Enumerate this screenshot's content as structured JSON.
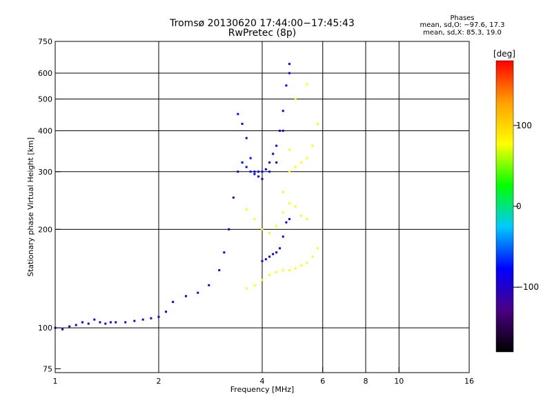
{
  "title": {
    "line1": "Tromsø 20130620 17:44:00−17:45:43",
    "line2": "RwPretec (8p)"
  },
  "stats": {
    "heading": "Phases",
    "o_mode": "mean, sd,O: −97.6, 17.3",
    "x_mode": "mean, sd,X:  85.3, 19.0"
  },
  "colorbar": {
    "unit_label": "[deg]",
    "ticks": [
      "100",
      "0",
      "−100"
    ],
    "tick_values": [
      100,
      0,
      -100
    ],
    "range": [
      -180,
      180
    ],
    "colors": [
      "#000000",
      "#4b0082",
      "#0000ff",
      "#00c8ff",
      "#00ff00",
      "#ffff00",
      "#ffa000",
      "#ff0000"
    ]
  },
  "chart_data": {
    "type": "scatter",
    "xlabel": "Frequency [MHz]",
    "ylabel": "Stationary phase Virtual Height [km]",
    "x_scale": "log",
    "y_scale": "log",
    "xlim": [
      1,
      16
    ],
    "ylim": [
      73,
      750
    ],
    "x_ticks": [
      1,
      2,
      4,
      6,
      8,
      10,
      16
    ],
    "y_ticks": [
      75,
      100,
      200,
      300,
      400,
      500,
      600,
      750
    ],
    "x_gridlines": [
      2,
      4,
      6,
      8,
      10
    ],
    "y_gridlines": [
      100,
      200,
      300,
      400,
      500,
      600
    ],
    "grid": true,
    "color_by": "phase [deg]",
    "series": [
      {
        "mode": "O",
        "phase_mean": -97.6,
        "phase_sd": 17.3,
        "x": [
          1.0,
          1.05,
          1.1,
          1.15,
          1.2,
          1.25,
          1.3,
          1.35,
          1.4,
          1.45,
          1.5,
          1.6,
          1.7,
          1.8,
          1.9,
          2.0,
          2.1,
          2.2,
          2.4,
          2.6,
          2.8,
          3.0,
          3.1,
          3.2,
          3.3,
          3.4,
          3.5,
          3.6,
          3.7,
          3.8,
          3.9,
          4.0,
          4.1,
          4.2,
          4.3,
          4.4,
          4.5,
          4.6,
          4.7,
          4.8,
          3.4,
          3.5,
          3.6,
          3.7,
          3.8,
          3.9,
          4.0,
          4.2,
          4.4,
          4.6,
          4.8,
          4.0,
          4.1,
          4.2,
          4.3,
          4.4,
          4.5,
          4.6,
          4.7,
          4.8
        ],
        "y": [
          100,
          99,
          101,
          102,
          104,
          103,
          106,
          104,
          103,
          104,
          104,
          104,
          105,
          106,
          107,
          108,
          112,
          120,
          125,
          128,
          135,
          150,
          170,
          200,
          250,
          300,
          320,
          310,
          300,
          295,
          300,
          300,
          305,
          320,
          340,
          360,
          400,
          460,
          550,
          640,
          450,
          420,
          380,
          330,
          300,
          290,
          285,
          300,
          320,
          400,
          600,
          160,
          162,
          165,
          168,
          170,
          175,
          190,
          210,
          215
        ]
      },
      {
        "mode": "X",
        "phase_mean": 85.3,
        "phase_sd": 19.0,
        "x": [
          3.6,
          3.8,
          4.0,
          4.2,
          4.4,
          4.6,
          4.8,
          5.0,
          5.2,
          5.4,
          5.6,
          5.8,
          4.8,
          5.0,
          5.2,
          5.4,
          5.6,
          5.8,
          3.6,
          3.8,
          4.0,
          4.2,
          4.4,
          4.6,
          4.8,
          5.0,
          5.2,
          5.4,
          4.6,
          4.8,
          5.0,
          5.4
        ],
        "y": [
          132,
          135,
          140,
          145,
          148,
          150,
          150,
          152,
          155,
          158,
          165,
          175,
          300,
          310,
          320,
          330,
          360,
          420,
          230,
          215,
          200,
          195,
          205,
          225,
          240,
          235,
          220,
          215,
          260,
          350,
          500,
          555
        ]
      }
    ]
  }
}
